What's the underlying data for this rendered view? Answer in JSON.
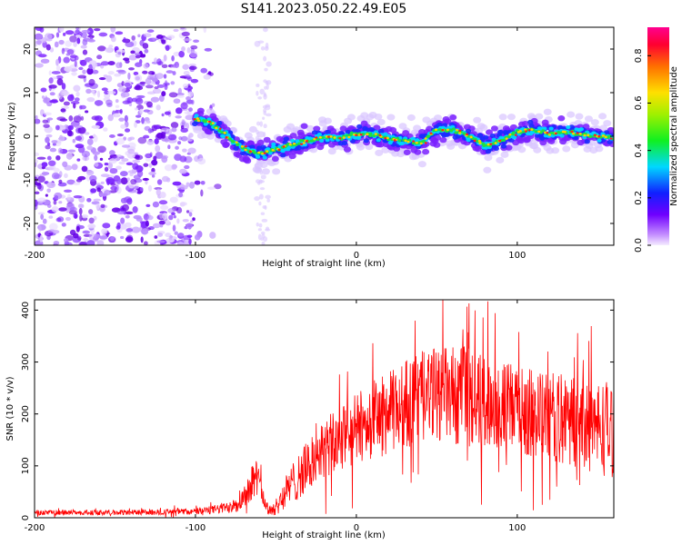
{
  "title": "S141.2023.050.22.49.E05",
  "chart_data": [
    {
      "type": "heatmap",
      "xlabel": "Height of straight line (km)",
      "ylabel": "Frequency (Hz)",
      "xlim": [
        -200,
        160
      ],
      "ylim": [
        -25,
        25
      ],
      "x_ticks": [
        -200,
        -100,
        0,
        100
      ],
      "y_ticks": [
        -20,
        -10,
        0,
        10,
        20
      ],
      "colorbar": {
        "label": "Normalized spectral amplitude",
        "range": [
          0,
          0.92
        ],
        "ticks": [
          "0.0",
          "0.2",
          "0.4",
          "0.6",
          "0.8"
        ],
        "colormap": "rainbow-purple-to-red"
      },
      "ridge_frequency_track": {
        "x": [
          -100,
          -90,
          -80,
          -70,
          -60,
          -50,
          -40,
          -30,
          -20,
          -10,
          0,
          10,
          20,
          30,
          40,
          50,
          60,
          70,
          80,
          90,
          100,
          110,
          120,
          130,
          140,
          150,
          160
        ],
        "y": [
          4,
          3,
          0,
          -3,
          -4,
          -3,
          -2,
          -1,
          0,
          -0.5,
          0.5,
          0.5,
          -0.5,
          -1,
          -1.5,
          1.5,
          1.5,
          0,
          -2,
          -1,
          1,
          1.5,
          0.5,
          1,
          0.5,
          0,
          -0.5
        ]
      },
      "noise_region_x": [
        -200,
        -100
      ]
    },
    {
      "type": "line",
      "xlabel": "Height of straight line (km)",
      "ylabel": "SNR (10 * v/v)",
      "xlim": [
        -200,
        160
      ],
      "ylim": [
        0,
        420
      ],
      "x_ticks": [
        -200,
        -100,
        0,
        100
      ],
      "y_ticks": [
        0,
        100,
        200,
        300,
        400
      ],
      "series": [
        {
          "color": "#ff0000",
          "envelope_x": [
            -200,
            -150,
            -100,
            -90,
            -80,
            -70,
            -65,
            -62,
            -58,
            -55,
            -50,
            -45,
            -40,
            -30,
            -20,
            -10,
            0,
            10,
            20,
            30,
            40,
            50,
            60,
            70,
            80,
            90,
            100,
            110,
            120,
            130,
            140,
            150,
            160
          ],
          "envelope_mean": [
            10,
            10,
            12,
            15,
            20,
            40,
            70,
            80,
            40,
            15,
            20,
            45,
            65,
            100,
            130,
            150,
            170,
            190,
            200,
            220,
            230,
            240,
            235,
            230,
            225,
            215,
            210,
            200,
            195,
            190,
            180,
            175,
            170
          ],
          "envelope_spread": [
            5,
            5,
            6,
            8,
            12,
            25,
            35,
            35,
            20,
            12,
            15,
            30,
            40,
            50,
            60,
            65,
            70,
            75,
            80,
            85,
            90,
            90,
            95,
            100,
            90,
            85,
            85,
            85,
            85,
            90,
            90,
            95,
            95
          ],
          "peak_value": 413,
          "peak_x": 70
        }
      ]
    }
  ]
}
